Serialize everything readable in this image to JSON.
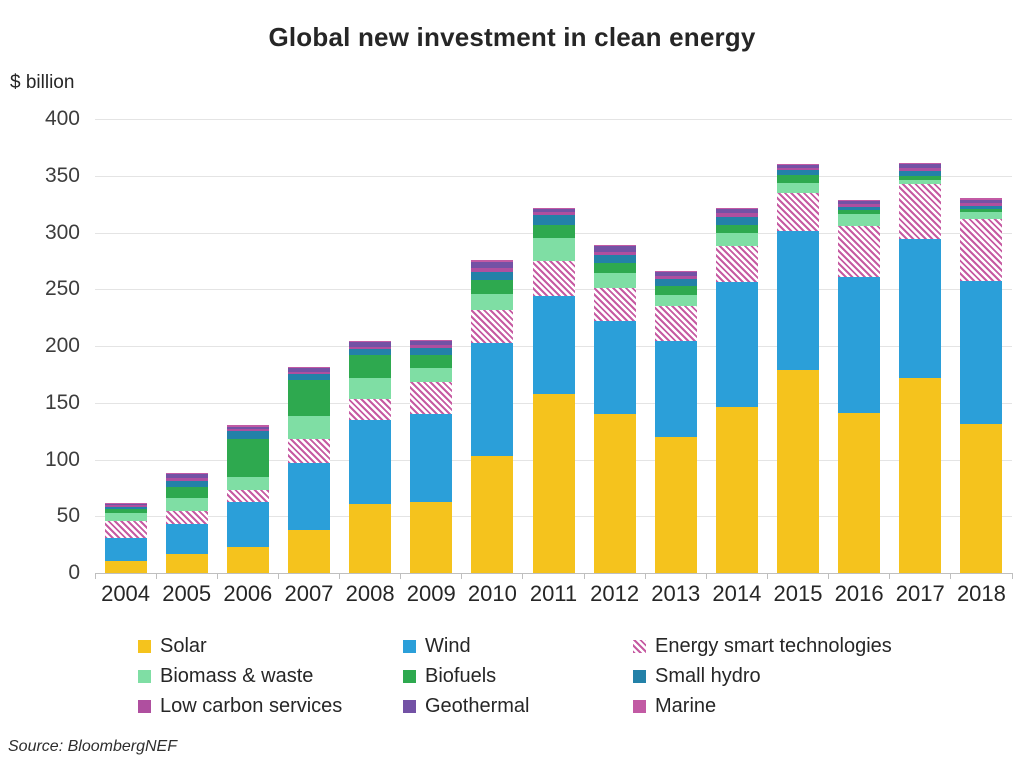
{
  "title": "Global new investment in clean energy",
  "unit_label": "$ billion",
  "source": "Source: BloombergNEF",
  "chart_data": {
    "type": "bar",
    "stacked": true,
    "title": "Global new investment in clean energy",
    "xlabel": "",
    "ylabel": "$ billion",
    "ylim": [
      0,
      400
    ],
    "y_ticks": [
      0,
      50,
      100,
      150,
      200,
      250,
      300,
      350,
      400
    ],
    "grid": "horizontal",
    "legend_position": "bottom",
    "categories": [
      "2004",
      "2005",
      "2006",
      "2007",
      "2008",
      "2009",
      "2010",
      "2011",
      "2012",
      "2013",
      "2014",
      "2015",
      "2016",
      "2017",
      "2018"
    ],
    "series": [
      {
        "name": "Solar",
        "color": "#F5C31D",
        "hatch": false,
        "values": [
          11,
          17,
          23,
          38,
          61,
          63,
          103,
          158,
          140,
          120,
          146,
          179,
          141,
          172,
          131
        ]
      },
      {
        "name": "Wind",
        "color": "#2B9FD9",
        "hatch": false,
        "values": [
          20,
          26,
          40,
          59,
          74,
          77,
          100,
          86,
          82,
          84,
          110,
          122,
          120,
          122,
          126
        ]
      },
      {
        "name": "Energy smart technologies",
        "color": "#C65BA2",
        "hatch": true,
        "values": [
          15,
          12,
          10,
          21,
          18,
          28,
          29,
          31,
          29,
          31,
          32,
          34,
          45,
          49,
          55
        ]
      },
      {
        "name": "Biomass & waste",
        "color": "#7FDEA4",
        "hatch": false,
        "values": [
          7,
          11,
          12,
          20,
          19,
          13,
          14,
          20,
          13,
          10,
          12,
          9,
          10,
          3.5,
          6.5
        ]
      },
      {
        "name": "Biofuels",
        "color": "#2EA94F",
        "hatch": false,
        "values": [
          3,
          10,
          33,
          32,
          20,
          11,
          12,
          12,
          9,
          8,
          7,
          7,
          3.5,
          3,
          2
        ]
      },
      {
        "name": "Small hydro",
        "color": "#2381A8",
        "hatch": false,
        "values": [
          2,
          5,
          7,
          5,
          5,
          6,
          7,
          8,
          7,
          6,
          7,
          4,
          3,
          5,
          3
        ]
      },
      {
        "name": "Low carbon services",
        "color": "#AF4F9F",
        "hatch": false,
        "values": [
          1.5,
          2.5,
          1.5,
          2.5,
          2.5,
          2.5,
          4,
          3,
          3,
          3,
          3,
          2,
          2.5,
          2.5,
          2.5
        ]
      },
      {
        "name": "Geothermal",
        "color": "#7352A5",
        "hatch": false,
        "values": [
          1.5,
          3.5,
          2.5,
          3,
          4,
          4,
          5,
          3,
          5,
          3.5,
          4,
          2.5,
          3,
          3,
          3
        ]
      },
      {
        "name": "Marine",
        "color": "#C25AA4",
        "hatch": false,
        "values": [
          0.5,
          1,
          1,
          1,
          1,
          1,
          1.5,
          1,
          1,
          1,
          1,
          0.5,
          1,
          1,
          1
        ]
      }
    ]
  }
}
